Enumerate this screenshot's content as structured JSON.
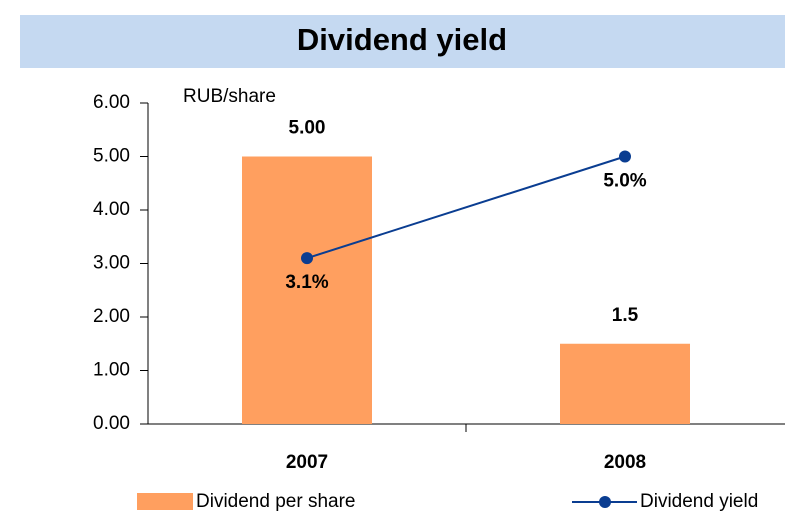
{
  "chart_data": {
    "type": "bar",
    "title": "Dividend yield",
    "y_label": "RUB/share",
    "categories": [
      "2007",
      "2008"
    ],
    "ylim": [
      0,
      6
    ],
    "yticks": [
      {
        "value": 0,
        "label": "0.00"
      },
      {
        "value": 1,
        "label": "1.00"
      },
      {
        "value": 2,
        "label": "2.00"
      },
      {
        "value": 3,
        "label": "3.00"
      },
      {
        "value": 4,
        "label": "4.00"
      },
      {
        "value": 5,
        "label": "5.00"
      },
      {
        "value": 6,
        "label": "6.00"
      }
    ],
    "series": [
      {
        "name": "Dividend per share",
        "type": "bar",
        "color": "#ff9f5f",
        "values": [
          5,
          1.5
        ],
        "value_labels": [
          "5.00",
          "1.5"
        ]
      },
      {
        "name": "Dividend yield",
        "type": "line",
        "color": "#0a3d91",
        "values": [
          3.1,
          5.0
        ],
        "value_labels": [
          "3.1%",
          "5.0%"
        ]
      }
    ],
    "legend": "bottom",
    "grid": false
  }
}
